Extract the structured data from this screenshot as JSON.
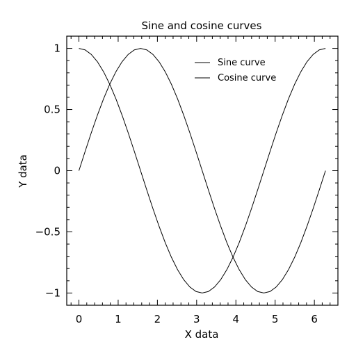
{
  "chart_data": {
    "type": "line",
    "title": "Sine and cosine curves",
    "xlabel": "X data",
    "ylabel": "Y data",
    "xlim": [
      -0.31,
      6.6
    ],
    "ylim": [
      -1.1,
      1.1
    ],
    "xticks": [
      0,
      1,
      2,
      3,
      4,
      5,
      6
    ],
    "xtick_labels": [
      "0",
      "1",
      "2",
      "3",
      "4",
      "5",
      "6"
    ],
    "yticks": [
      -1,
      -0.5,
      0,
      0.5,
      1
    ],
    "ytick_labels": [
      "−1",
      "−0.5",
      "0",
      "0.5",
      "1"
    ],
    "grid": false,
    "legend_position": "top-right",
    "series": [
      {
        "name": "Sine curve",
        "color": "#000000",
        "x": [
          0,
          0.1571,
          0.3142,
          0.4712,
          0.6283,
          0.7854,
          0.9425,
          1.0996,
          1.2566,
          1.4137,
          1.5708,
          1.7279,
          1.885,
          2.042,
          2.1991,
          2.3562,
          2.5133,
          2.6704,
          2.8274,
          2.9845,
          3.1416,
          3.2987,
          3.4558,
          3.6128,
          3.7699,
          3.927,
          4.0841,
          4.2412,
          4.3982,
          4.5553,
          4.7124,
          4.8695,
          5.0265,
          5.1836,
          5.3407,
          5.4978,
          5.6549,
          5.8119,
          5.969,
          6.1261,
          6.2832
        ],
        "y": [
          0,
          0.1564,
          0.309,
          0.454,
          0.5878,
          0.7071,
          0.809,
          0.891,
          0.9511,
          0.9877,
          1,
          0.9877,
          0.9511,
          0.891,
          0.809,
          0.7071,
          0.5878,
          0.454,
          0.309,
          0.1564,
          0,
          -0.1564,
          -0.309,
          -0.454,
          -0.5878,
          -0.7071,
          -0.809,
          -0.891,
          -0.9511,
          -0.9877,
          -1,
          -0.9877,
          -0.9511,
          -0.891,
          -0.809,
          -0.7071,
          -0.5878,
          -0.454,
          -0.309,
          -0.1564,
          0
        ]
      },
      {
        "name": "Cosine curve",
        "color": "#000000",
        "x": [
          0,
          0.1571,
          0.3142,
          0.4712,
          0.6283,
          0.7854,
          0.9425,
          1.0996,
          1.2566,
          1.4137,
          1.5708,
          1.7279,
          1.885,
          2.042,
          2.1991,
          2.3562,
          2.5133,
          2.6704,
          2.8274,
          2.9845,
          3.1416,
          3.2987,
          3.4558,
          3.6128,
          3.7699,
          3.927,
          4.0841,
          4.2412,
          4.3982,
          4.5553,
          4.7124,
          4.8695,
          5.0265,
          5.1836,
          5.3407,
          5.4978,
          5.6549,
          5.8119,
          5.969,
          6.1261,
          6.2832
        ],
        "y": [
          1,
          0.9877,
          0.9511,
          0.891,
          0.809,
          0.7071,
          0.5878,
          0.454,
          0.309,
          0.1564,
          0,
          -0.1564,
          -0.309,
          -0.454,
          -0.5878,
          -0.7071,
          -0.809,
          -0.891,
          -0.9511,
          -0.9877,
          -1,
          -0.9877,
          -0.9511,
          -0.891,
          -0.809,
          -0.7071,
          -0.5878,
          -0.454,
          -0.309,
          -0.1564,
          0,
          0.1564,
          0.309,
          0.454,
          0.5878,
          0.7071,
          0.809,
          0.891,
          0.9511,
          0.9877,
          1
        ]
      }
    ]
  }
}
